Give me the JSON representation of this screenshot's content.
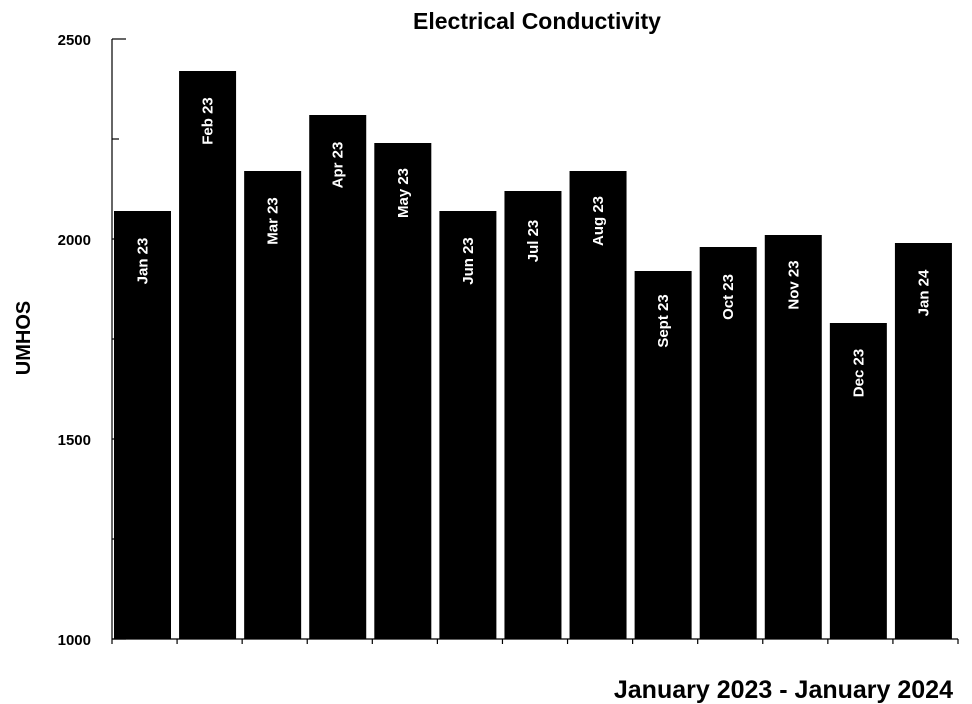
{
  "chart_data": {
    "type": "bar",
    "title": "Electrical Conductivity",
    "xlabel": "January 2023 - January 2024",
    "ylabel": "UMHOS",
    "categories": [
      "Jan 23",
      "Feb 23",
      "Mar 23",
      "Apr 23",
      "May 23",
      "Jun 23",
      "Jul 23",
      "Aug 23",
      "Sept 23",
      "Oct 23",
      "Nov 23",
      "Dec 23",
      "Jan 24"
    ],
    "values": [
      2070,
      2420,
      2170,
      2310,
      2240,
      2070,
      2120,
      2170,
      1920,
      1980,
      2010,
      1790,
      1990
    ],
    "ylim": [
      1000,
      2500
    ],
    "yticks": [
      1000,
      1500,
      2000,
      2500
    ],
    "grid": false,
    "legend": "none",
    "bar_color": "#000000",
    "bar_label_color": "#ffffff",
    "background": "#ffffff"
  }
}
